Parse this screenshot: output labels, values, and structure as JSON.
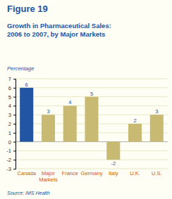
{
  "chart_data": {
    "type": "bar",
    "title": "Growth in Pharmaceutical Sales:\n2006 to 2007, by Major Markets",
    "ylabel": "Percentage",
    "annotations": [
      "Figure 19",
      "Source: IMS Health"
    ],
    "categories": [
      "Canada",
      "Major\nMarkets",
      "France",
      "Germany",
      "Italy",
      "U.K.",
      "U.S."
    ],
    "values": [
      6,
      3,
      4,
      5,
      -2,
      2,
      3
    ],
    "colors": [
      "#2255a4",
      "#c8ba72",
      "#c8ba72",
      "#c8ba72",
      "#c8ba72",
      "#c8ba72",
      "#c8ba72"
    ],
    "ylim": [
      -3,
      7
    ],
    "yticks": [
      -3,
      -2,
      -1,
      0,
      1,
      2,
      3,
      4,
      5,
      6,
      7
    ],
    "grid": true,
    "data_labels": true
  }
}
